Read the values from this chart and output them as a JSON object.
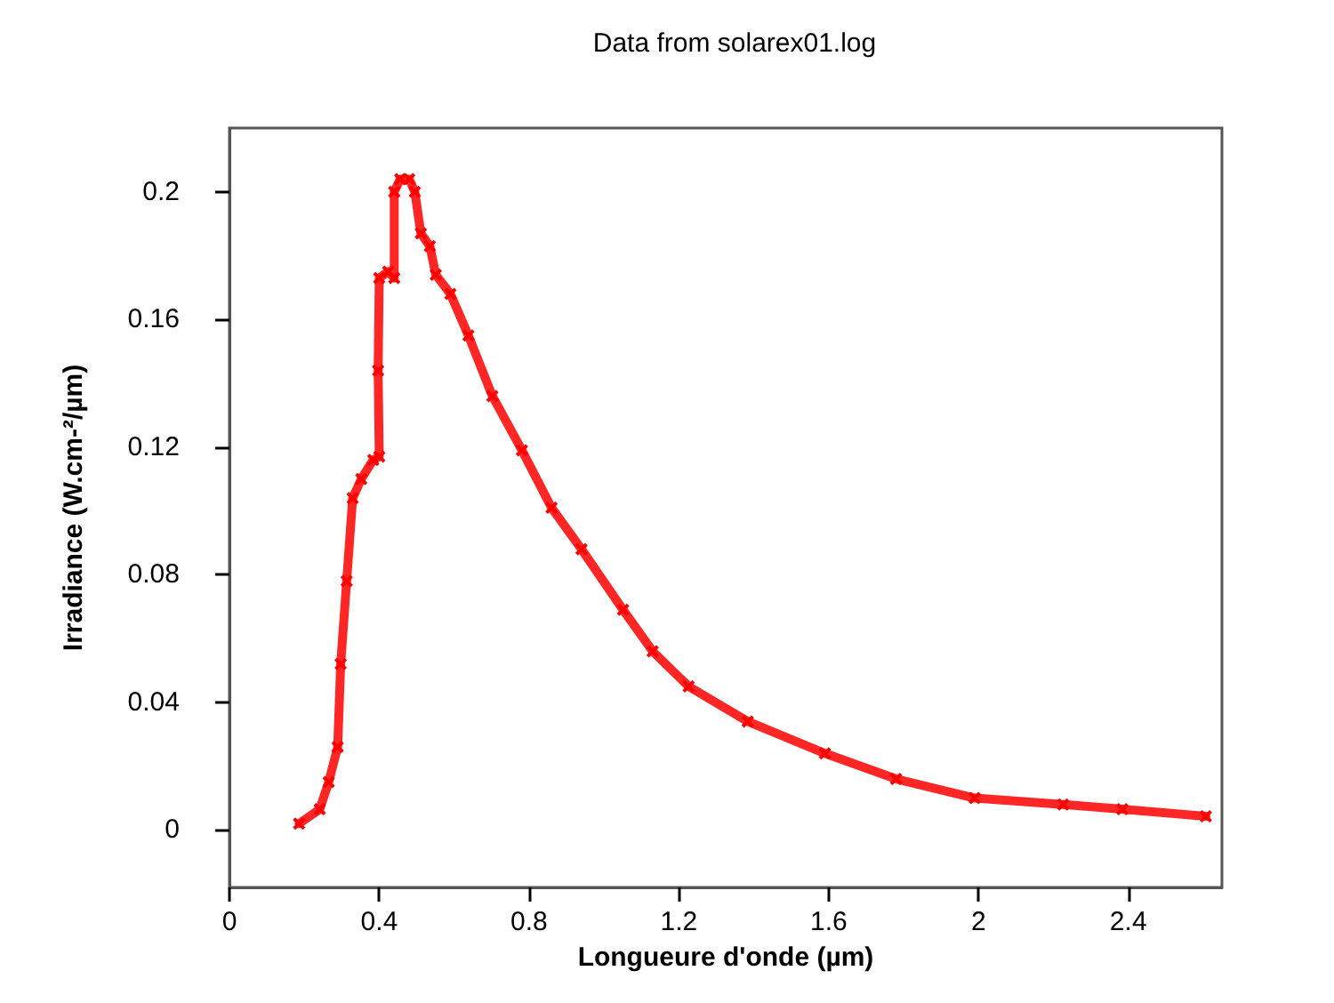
{
  "chart_data": {
    "type": "line",
    "subtitle": "Data from solarex01.log",
    "xlabel": "Longueure d'onde (µm)",
    "ylabel": "Irradiance (W.cm-²/µm)",
    "x": [
      0.186,
      0.241,
      0.265,
      0.289,
      0.297,
      0.313,
      0.329,
      0.352,
      0.384,
      0.4,
      0.397,
      0.4,
      0.424,
      0.44,
      0.44,
      0.456,
      0.48,
      0.495,
      0.511,
      0.535,
      0.551,
      0.59,
      0.638,
      0.702,
      0.781,
      0.86,
      0.94,
      1.051,
      1.13,
      1.226,
      1.384,
      1.59,
      1.78,
      1.99,
      2.226,
      2.384,
      2.607
    ],
    "series": [
      {
        "color": "#ff0000",
        "values": [
          0.002,
          0.0065,
          0.015,
          0.026,
          0.052,
          0.078,
          0.104,
          0.11,
          0.116,
          0.117,
          0.144,
          0.173,
          0.175,
          0.173,
          0.2,
          0.204,
          0.204,
          0.2,
          0.187,
          0.183,
          0.174,
          0.168,
          0.155,
          0.136,
          0.119,
          0.101,
          0.088,
          0.069,
          0.056,
          0.045,
          0.034,
          0.024,
          0.016,
          0.01,
          0.008,
          0.0065,
          0.0043
        ]
      }
    ],
    "xlim": [
      0,
      2.65
    ],
    "xticks": [
      0,
      0.4,
      0.8,
      1.2,
      1.6,
      2,
      2.4
    ],
    "ylim": [
      -0.018,
      0.22
    ],
    "yticks": [
      0,
      0.04,
      0.08,
      0.12,
      0.16,
      0.2
    ],
    "grid": false,
    "marker": "cross",
    "line_style": "solid"
  }
}
